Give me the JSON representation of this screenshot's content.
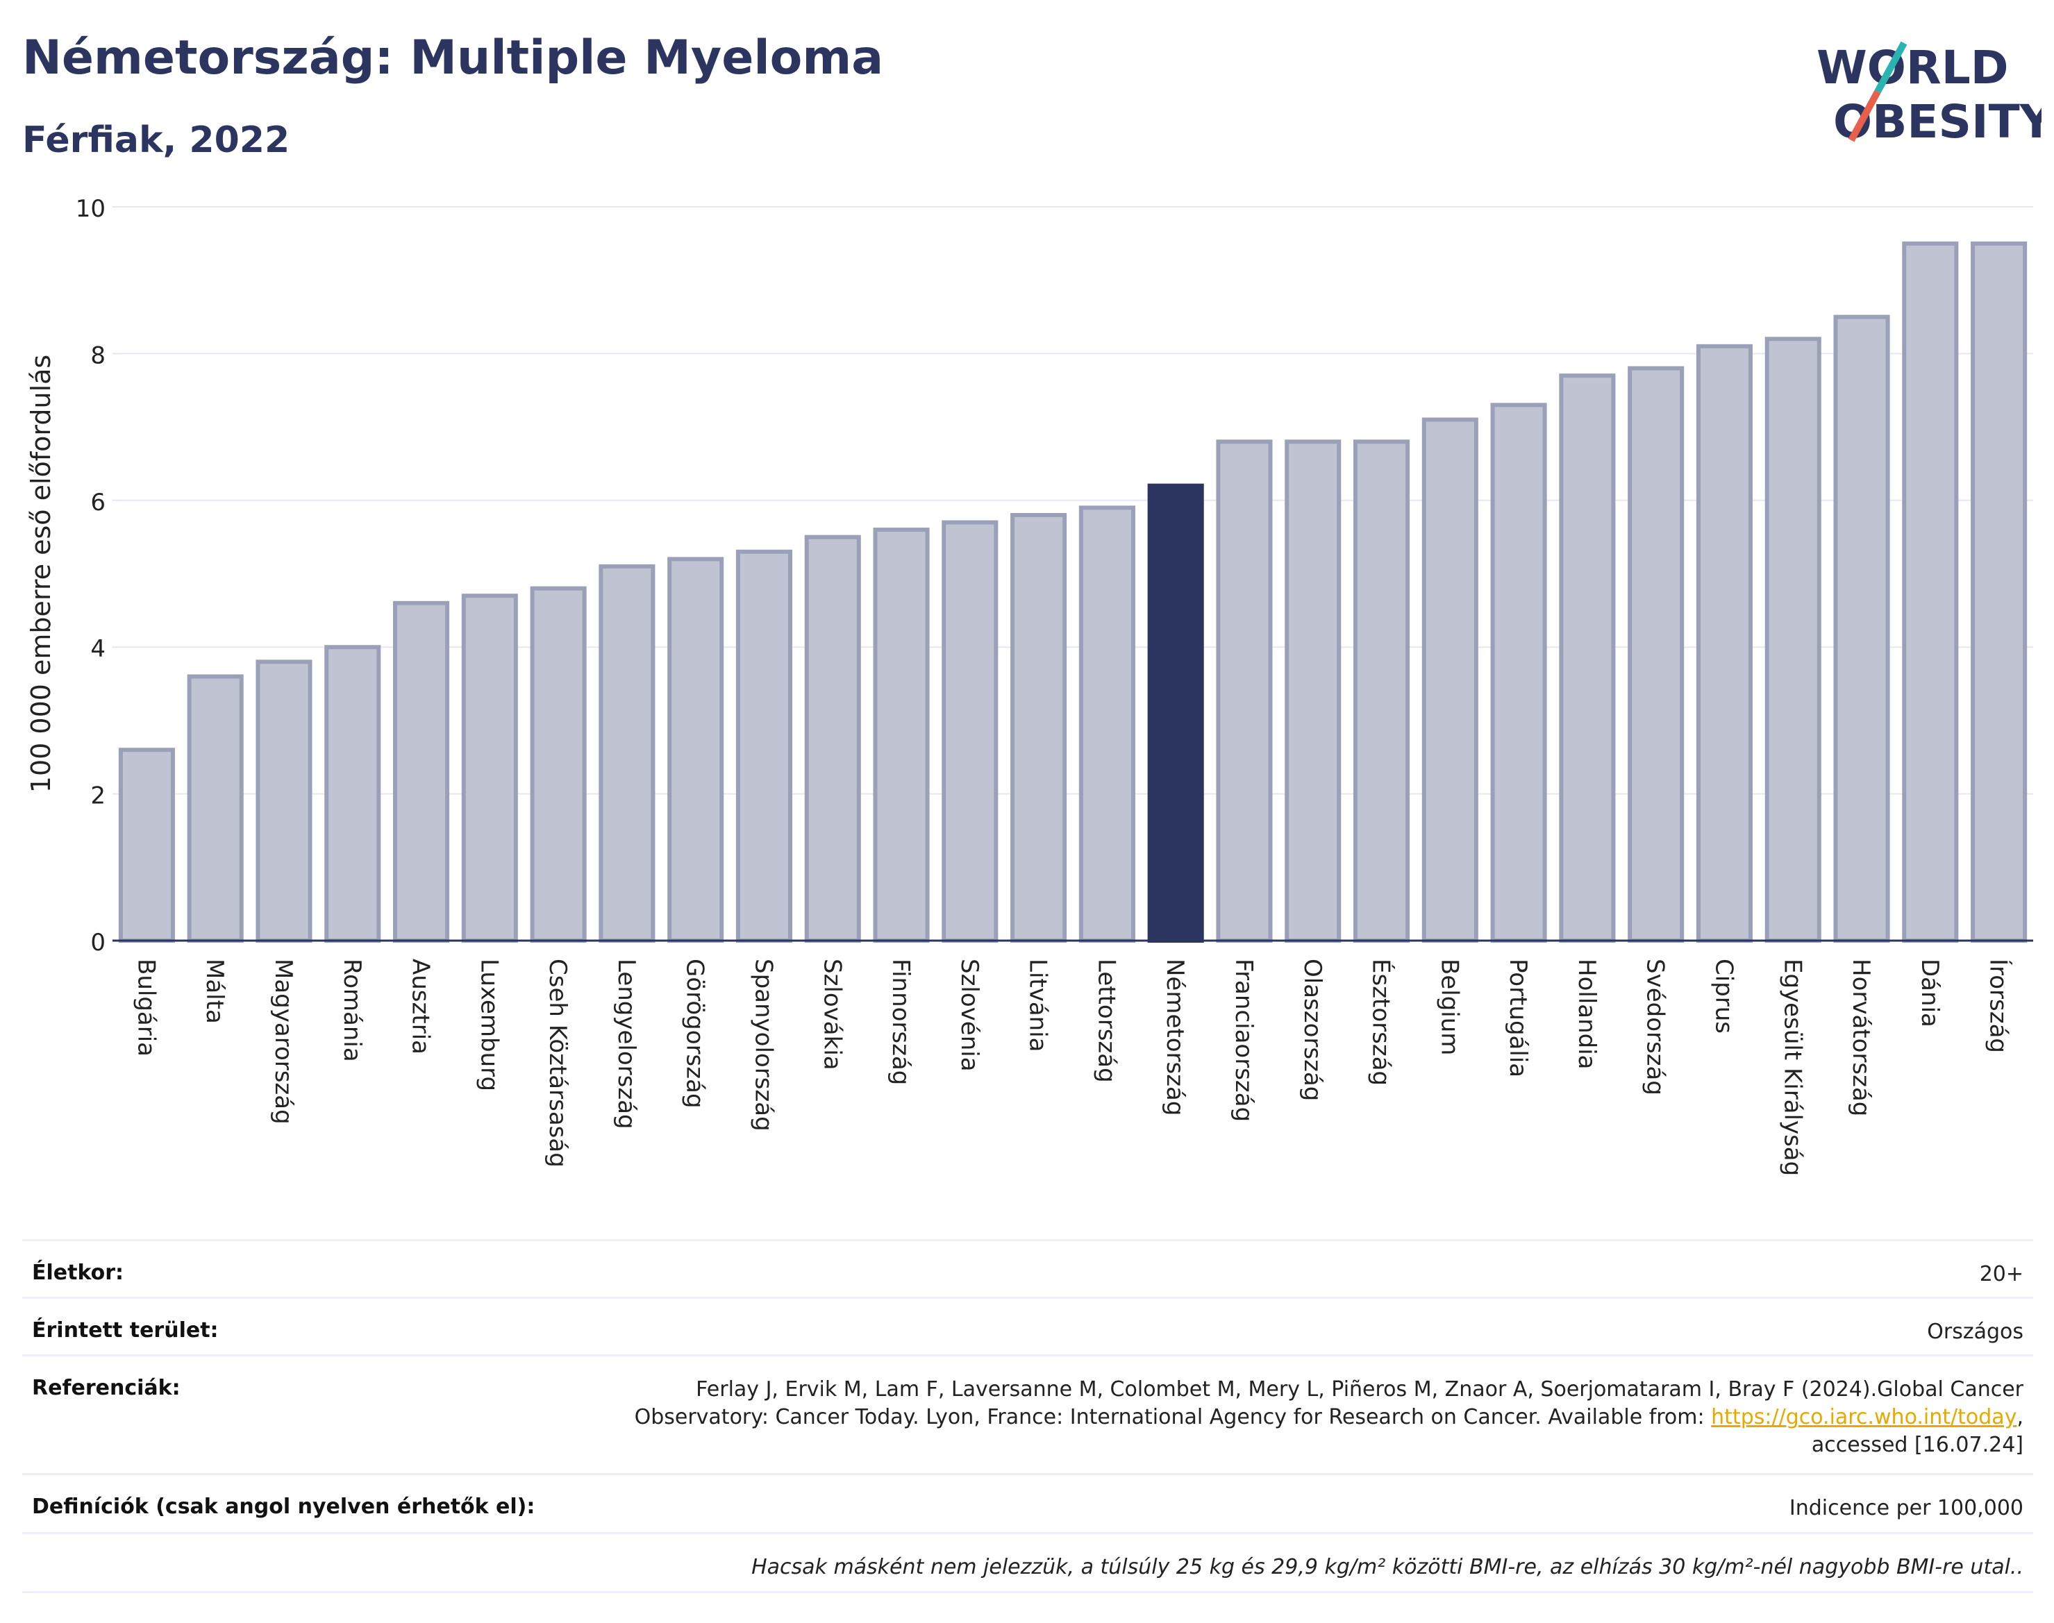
{
  "header": {
    "title": "Németország: Multiple Myeloma",
    "subtitle": "Férfiak, 2022",
    "logo_line1": "WORLD",
    "logo_line2": "OBESITY"
  },
  "colors": {
    "bar": "#c0c4d2",
    "bar_border": "#9aa0b8",
    "highlight": "#2b3560",
    "accent_teal": "#2bb3b1",
    "accent_red": "#e8604c"
  },
  "chart_data": {
    "type": "bar",
    "title": "Németország: Multiple Myeloma",
    "subtitle": "Férfiak, 2022",
    "ylabel": "100 000 emberre eső előfordulás",
    "xlabel": "",
    "ylim": [
      0,
      10
    ],
    "yticks": [
      0,
      2,
      4,
      6,
      8,
      10
    ],
    "grid": true,
    "highlight": "Németország",
    "categories": [
      "Bulgária",
      "Málta",
      "Magyarország",
      "Románia",
      "Ausztria",
      "Luxemburg",
      "Cseh Köztársaság",
      "Lengyelország",
      "Görögország",
      "Spanyolország",
      "Szlovákia",
      "Finnország",
      "Szlovénia",
      "Litvánia",
      "Lettország",
      "Németország",
      "Franciaország",
      "Olaszország",
      "Észtország",
      "Belgium",
      "Portugália",
      "Hollandia",
      "Svédország",
      "Ciprus",
      "Egyesült Királyság",
      "Horvátország",
      "Dánia",
      "Írország"
    ],
    "values": [
      2.6,
      3.6,
      3.8,
      4.0,
      4.6,
      4.7,
      4.8,
      5.1,
      5.2,
      5.3,
      5.5,
      5.6,
      5.7,
      5.8,
      5.9,
      6.2,
      6.8,
      6.8,
      6.8,
      7.1,
      7.3,
      7.7,
      7.8,
      8.1,
      8.2,
      8.5,
      9.5,
      9.5
    ]
  },
  "info": {
    "age_label": "Életkor:",
    "age_value": "20+",
    "area_label": "Érintett terület:",
    "area_value": "Országos",
    "ref_label": "Referenciák:",
    "ref_line1": "Ferlay J, Ervik M, Lam F, Laversanne M, Colombet M, Mery L, Piñeros M, Znaor A, Soerjomataram I, Bray F (2024).Global Cancer",
    "ref_line2": "Observatory: Cancer Today. Lyon, France: International Agency for Research on Cancer. Available from: ",
    "ref_link": "https://gco.iarc.who.int/today",
    "ref_line2_end": ",",
    "ref_line3": "accessed [16.07.24]",
    "def_label": "Definíciók (csak angol nyelven érhetők el):",
    "def_value": "Indicence per 100,000",
    "note": "Hacsak másként nem jelezzük, a túlsúly 25 kg és 29,9 kg/m² közötti BMI-re, az elhízás 30 kg/m²-nél nagyobb BMI-re utal.."
  }
}
